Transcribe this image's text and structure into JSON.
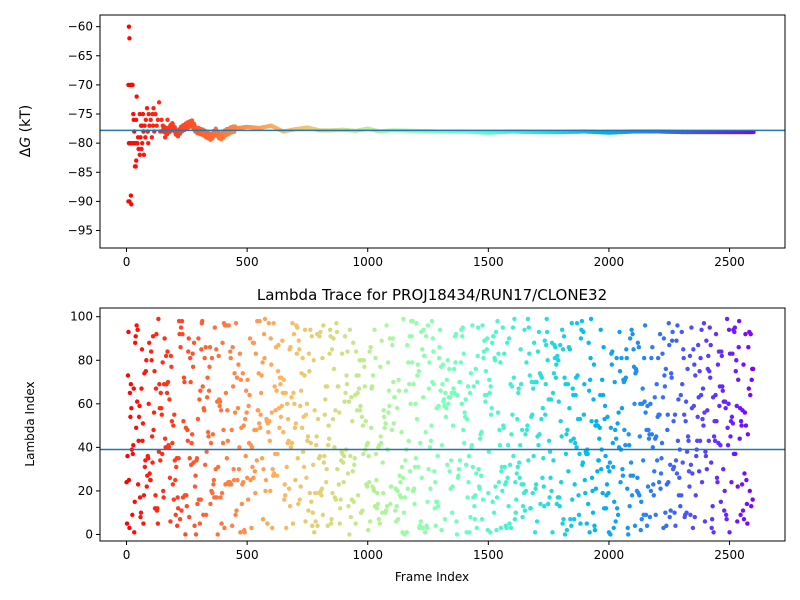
{
  "chart_data": [
    {
      "type": "scatter",
      "title": "",
      "xlabel": "",
      "ylabel": "ΔG (kT)",
      "ylabel_parts": [
        "Δ",
        "G",
        " (kT)"
      ],
      "xlim": [
        -110,
        2730
      ],
      "ylim": [
        -98,
        -58
      ],
      "xticks": [
        0,
        500,
        1000,
        1500,
        2000,
        2500
      ],
      "yticks": [
        -95,
        -90,
        -85,
        -80,
        -75,
        -70,
        -65,
        -60
      ],
      "reference_line": -77.8,
      "reference_color": "#1f77b4",
      "colormap": "rainbow (frame index: red to violet)",
      "x_max": 2600,
      "series": [
        {
          "points": [
            [
              10,
              -60
            ],
            [
              12,
              -62
            ],
            [
              8,
              -70
            ],
            [
              15,
              -70
            ],
            [
              20,
              -70
            ],
            [
              22,
              -70
            ],
            [
              25,
              -70
            ],
            [
              10,
              -80
            ],
            [
              12,
              -80
            ],
            [
              18,
              -80
            ],
            [
              25,
              -80
            ],
            [
              30,
              -80
            ],
            [
              35,
              -80
            ],
            [
              40,
              -80
            ],
            [
              8,
              -90
            ],
            [
              12,
              -90
            ],
            [
              18,
              -89
            ],
            [
              20,
              -90.5
            ],
            [
              28,
              -75
            ],
            [
              30,
              -76
            ],
            [
              32,
              -78
            ],
            [
              35,
              -84
            ],
            [
              38,
              -84
            ],
            [
              40,
              -83
            ],
            [
              40,
              -76
            ],
            [
              42,
              -72
            ],
            [
              45,
              -80
            ],
            [
              48,
              -79
            ],
            [
              50,
              -81
            ],
            [
              55,
              -75
            ],
            [
              55,
              -82
            ],
            [
              58,
              -79
            ],
            [
              60,
              -77
            ],
            [
              62,
              -81
            ],
            [
              65,
              -77
            ],
            [
              65,
              -80
            ],
            [
              68,
              -75
            ],
            [
              70,
              -78
            ],
            [
              72,
              -82
            ],
            [
              75,
              -77
            ],
            [
              78,
              -79
            ],
            [
              80,
              -76
            ],
            [
              85,
              -74
            ],
            [
              88,
              -78
            ],
            [
              90,
              -80
            ],
            [
              92,
              -75
            ],
            [
              95,
              -77
            ],
            [
              100,
              -76
            ],
            [
              105,
              -79
            ],
            [
              108,
              -75
            ],
            [
              110,
              -77
            ],
            [
              112,
              -74
            ],
            [
              115,
              -78
            ],
            [
              120,
              -75
            ],
            [
              125,
              -77
            ],
            [
              130,
              -76
            ],
            [
              135,
              -73
            ],
            [
              140,
              -78
            ],
            [
              145,
              -76
            ],
            [
              150,
              -77
            ],
            [
              160,
              -79
            ],
            [
              170,
              -76
            ],
            [
              180,
              -78
            ]
          ]
        }
      ],
      "trace": {
        "x": [
          150,
          170,
          190,
          210,
          230,
          250,
          270,
          290,
          310,
          330,
          350,
          370,
          390,
          410,
          430,
          450,
          500,
          550,
          600,
          650,
          700,
          750,
          800,
          850,
          900,
          950,
          1000,
          1050,
          1100,
          1200,
          1300,
          1400,
          1500,
          1600,
          1700,
          1800,
          1900,
          2000,
          2100,
          2200,
          2300,
          2400,
          2500,
          2600
        ],
        "y": [
          -77.5,
          -78,
          -77,
          -78.5,
          -77.5,
          -77,
          -76.5,
          -77.8,
          -78,
          -78.5,
          -79,
          -78,
          -79,
          -78.2,
          -77.8,
          -77.5,
          -77.2,
          -77.4,
          -77,
          -78,
          -77.6,
          -77.3,
          -77.8,
          -77.8,
          -77.7,
          -77.9,
          -77.5,
          -78,
          -77.8,
          -77.9,
          -78,
          -78,
          -78.2,
          -78,
          -78.1,
          -78.1,
          -78,
          -78.2,
          -78,
          -78,
          -78.1,
          -78.1,
          -78.1,
          -78.1
        ]
      }
    },
    {
      "type": "scatter",
      "title": "Lambda Trace for PROJ18434/RUN17/CLONE32",
      "xlabel": "Frame Index",
      "ylabel": "Lambda Index",
      "xlim": [
        -110,
        2730
      ],
      "ylim": [
        -3,
        104
      ],
      "xticks": [
        0,
        500,
        1000,
        1500,
        2000,
        2500
      ],
      "yticks": [
        0,
        20,
        40,
        60,
        80,
        100
      ],
      "reference_line": 39,
      "reference_color": "#1f77b4",
      "colormap": "rainbow (frame index: red to violet)",
      "n_points": 2600,
      "x_range": [
        0,
        2600
      ],
      "y_range": [
        0,
        99
      ]
    }
  ]
}
